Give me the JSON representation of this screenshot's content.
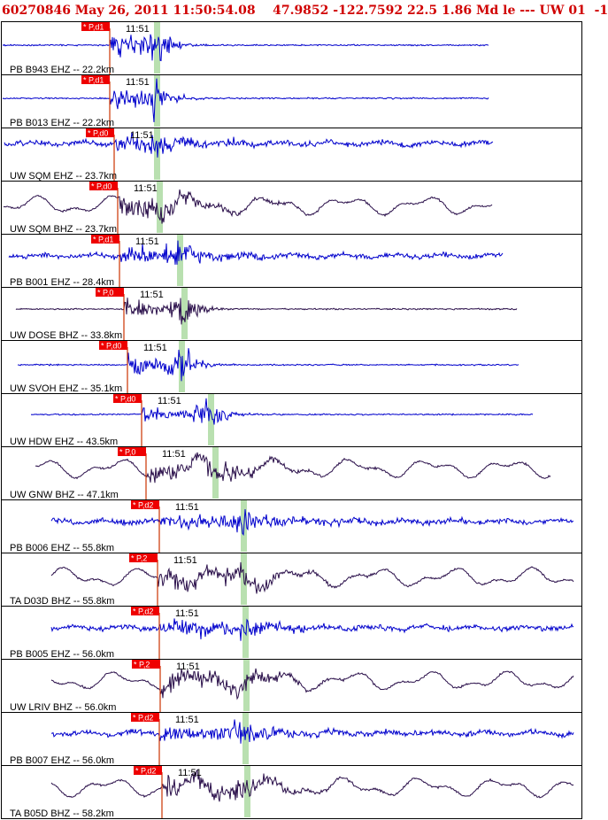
{
  "header": {
    "title": "60270846 May 26, 2011 11:50:54.08    47.9852 -122.7592 22.5 1.86 Md le --- UW 01  -1"
  },
  "colors": {
    "blue_trace": "#0000cc",
    "dark_trace": "#2a0f4a",
    "pick_flag": "#ee0000",
    "pick_line": "#cc3300",
    "s_window": "#b9e0b0",
    "frame": "#000000"
  },
  "chart_data": {
    "type": "line",
    "time_label": "11:51",
    "traces": [
      {
        "label": "PB B943 EHZ -- 22.2km",
        "pick": "P,d1",
        "color": "blue",
        "style": "burst"
      },
      {
        "label": "PB B013 EHZ -- 22.2km",
        "pick": "P,d1",
        "color": "blue",
        "style": "burst"
      },
      {
        "label": "UW SQM EHZ -- 23.7km",
        "pick": "P,d0",
        "color": "blue",
        "style": "noisy"
      },
      {
        "label": "UW SQM BHZ -- 23.7km",
        "pick": "P,d0",
        "color": "dark",
        "style": "wavy"
      },
      {
        "label": "PB B001 EHZ -- 28.4km",
        "pick": "P,d1",
        "color": "blue",
        "style": "noisy"
      },
      {
        "label": "UW DOSE BHZ -- 33.8km",
        "pick": "P,0",
        "color": "dark",
        "style": "burst"
      },
      {
        "label": "UW SVOH EHZ -- 35.1km",
        "pick": "P,d0",
        "color": "blue",
        "style": "burst"
      },
      {
        "label": "UW HDW EHZ -- 43.5km",
        "pick": "P,d0",
        "color": "blue",
        "style": "burst"
      },
      {
        "label": "UW GNW BHZ -- 47.1km",
        "pick": "P,0",
        "color": "dark",
        "style": "wavy"
      },
      {
        "label": "PB B006 EHZ -- 55.8km",
        "pick": "P,d2",
        "color": "blue",
        "style": "noisy"
      },
      {
        "label": "TA D03D BHZ -- 55.8km",
        "pick": "P,2",
        "color": "dark",
        "style": "wavy"
      },
      {
        "label": "PB B005 EHZ -- 56.0km",
        "pick": "P,d2",
        "color": "blue",
        "style": "noisy"
      },
      {
        "label": "UW LRIV BHZ -- 56.0km",
        "pick": "P,2",
        "color": "dark",
        "style": "wavy"
      },
      {
        "label": "PB B007 EHZ -- 56.0km",
        "pick": "P,d2",
        "color": "blue",
        "style": "noisy"
      },
      {
        "label": "TA B05D BHZ -- 58.2km",
        "pick": "P,d2",
        "color": "dark",
        "style": "wavy"
      }
    ]
  }
}
